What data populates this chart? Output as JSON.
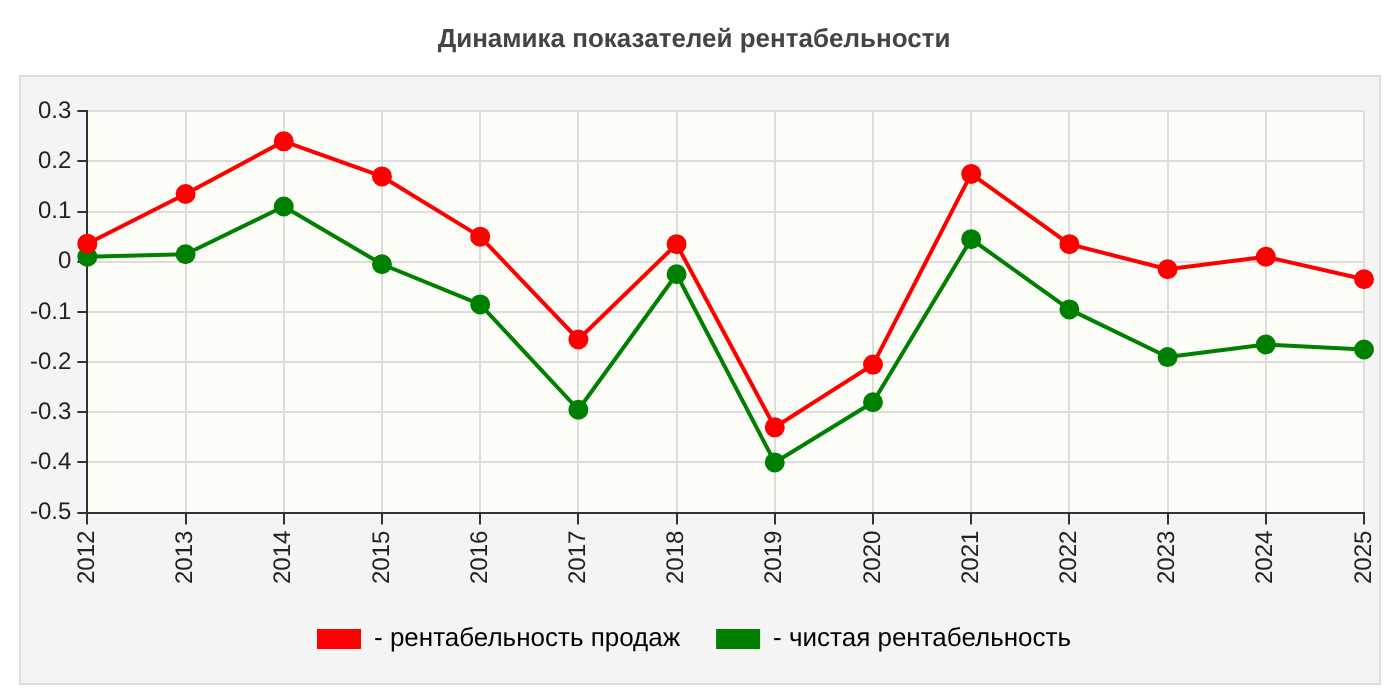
{
  "chart_data": {
    "type": "line",
    "title": "Динамика показателей рентабельности",
    "categories": [
      "2012",
      "2013",
      "2014",
      "2015",
      "2016",
      "2017",
      "2018",
      "2019",
      "2020",
      "2021",
      "2022",
      "2023",
      "2024",
      "2025"
    ],
    "series": [
      {
        "name": "- рентабельность продаж",
        "color": "#ff0000",
        "values": [
          0.036,
          0.135,
          0.24,
          0.17,
          0.05,
          -0.155,
          0.035,
          -0.33,
          -0.205,
          0.175,
          0.035,
          -0.015,
          0.01,
          -0.035
        ]
      },
      {
        "name": "- чистая рентабельность",
        "color": "#008000",
        "values": [
          0.01,
          0.015,
          0.11,
          -0.005,
          -0.085,
          -0.295,
          -0.025,
          -0.4,
          -0.28,
          0.045,
          -0.095,
          -0.19,
          -0.165,
          -0.175
        ]
      }
    ],
    "ylim": [
      -0.5,
      0.3
    ],
    "yticks": [
      -0.5,
      -0.4,
      -0.3,
      -0.2,
      -0.1,
      0,
      0.1,
      0.2,
      0.3
    ],
    "grid": true,
    "legend": "bottom",
    "marker": "circle",
    "line_style": "solid"
  }
}
